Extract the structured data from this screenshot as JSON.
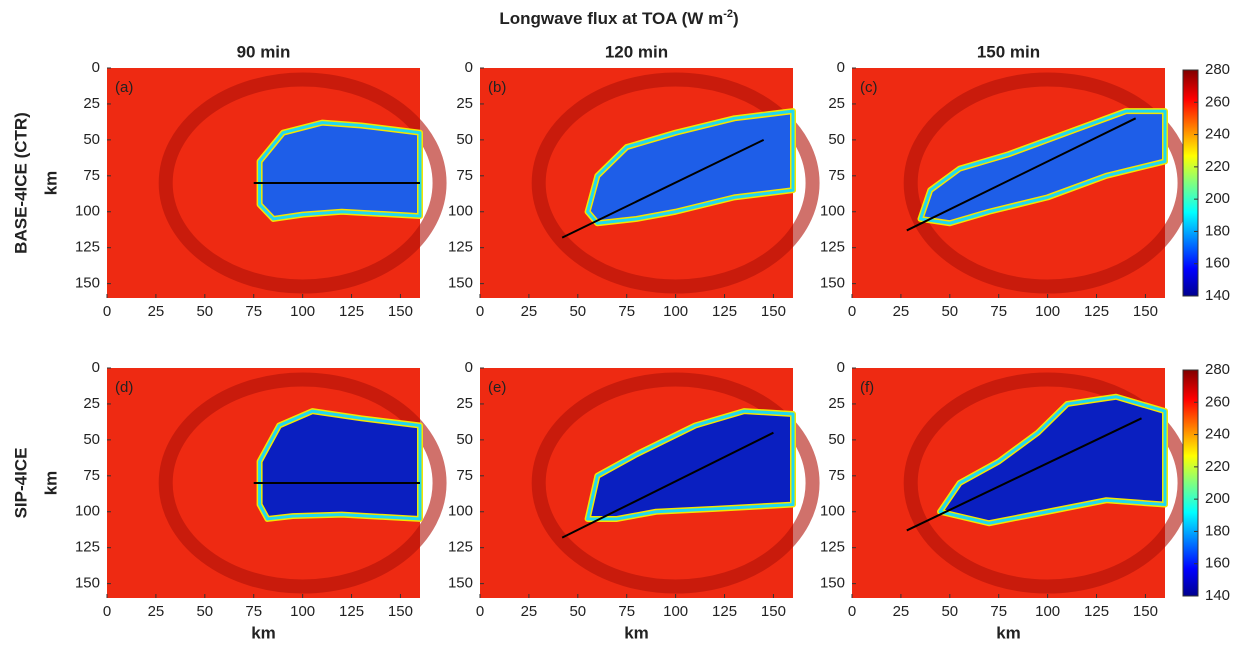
{
  "title": "Longwave flux at TOA (W m",
  "title_sup": "-2",
  "title_end": ")",
  "columns": [
    "90 min",
    "120 min",
    "150 min"
  ],
  "rows": [
    "BASE-4ICE (CTR)",
    "SIP-4ICE"
  ],
  "colorbars": [
    {
      "lim": [
        140,
        280
      ],
      "ticks": [
        140,
        160,
        180,
        200,
        220,
        240,
        260,
        280
      ]
    },
    {
      "lim": [
        140,
        280
      ],
      "ticks": [
        140,
        160,
        180,
        200,
        220,
        240,
        260,
        280
      ]
    }
  ],
  "chart_data": [
    {
      "type": "heatmap",
      "label": "(a)",
      "ylabel": "km",
      "xlim": [
        0,
        160
      ],
      "ylim": [
        160,
        0
      ],
      "xticks": [
        0,
        25,
        50,
        75,
        100,
        125,
        150
      ],
      "yticks": [
        0,
        25,
        50,
        75,
        100,
        125,
        150
      ],
      "section": {
        "x": [
          75,
          160
        ],
        "y": [
          80,
          80
        ]
      }
    },
    {
      "type": "heatmap",
      "label": "(b)",
      "xlim": [
        0,
        160
      ],
      "ylim": [
        160,
        0
      ],
      "xticks": [
        0,
        25,
        50,
        75,
        100,
        125,
        150
      ],
      "yticks": [
        0,
        25,
        50,
        75,
        100,
        125,
        150
      ],
      "section": {
        "x": [
          42,
          145
        ],
        "y": [
          118,
          50
        ]
      }
    },
    {
      "type": "heatmap",
      "label": "(c)",
      "xlim": [
        0,
        160
      ],
      "ylim": [
        160,
        0
      ],
      "xticks": [
        0,
        25,
        50,
        75,
        100,
        125,
        150
      ],
      "yticks": [
        0,
        25,
        50,
        75,
        100,
        125,
        150
      ],
      "section": {
        "x": [
          28,
          145
        ],
        "y": [
          113,
          35
        ]
      }
    },
    {
      "type": "heatmap",
      "label": "(d)",
      "ylabel": "km",
      "xlabel": "km",
      "xlim": [
        0,
        160
      ],
      "ylim": [
        160,
        0
      ],
      "xticks": [
        0,
        25,
        50,
        75,
        100,
        125,
        150
      ],
      "yticks": [
        0,
        25,
        50,
        75,
        100,
        125,
        150
      ],
      "section": {
        "x": [
          75,
          160
        ],
        "y": [
          80,
          80
        ]
      }
    },
    {
      "type": "heatmap",
      "label": "(e)",
      "xlabel": "km",
      "xlim": [
        0,
        160
      ],
      "ylim": [
        160,
        0
      ],
      "xticks": [
        0,
        25,
        50,
        75,
        100,
        125,
        150
      ],
      "yticks": [
        0,
        25,
        50,
        75,
        100,
        125,
        150
      ],
      "section": {
        "x": [
          42,
          150
        ],
        "y": [
          118,
          45
        ]
      }
    },
    {
      "type": "heatmap",
      "label": "(f)",
      "xlabel": "km",
      "xlim": [
        0,
        160
      ],
      "ylim": [
        160,
        0
      ],
      "xticks": [
        0,
        25,
        50,
        75,
        100,
        125,
        150
      ],
      "yticks": [
        0,
        25,
        50,
        75,
        100,
        125,
        150
      ],
      "section": {
        "x": [
          28,
          148
        ],
        "y": [
          113,
          35
        ]
      }
    }
  ]
}
